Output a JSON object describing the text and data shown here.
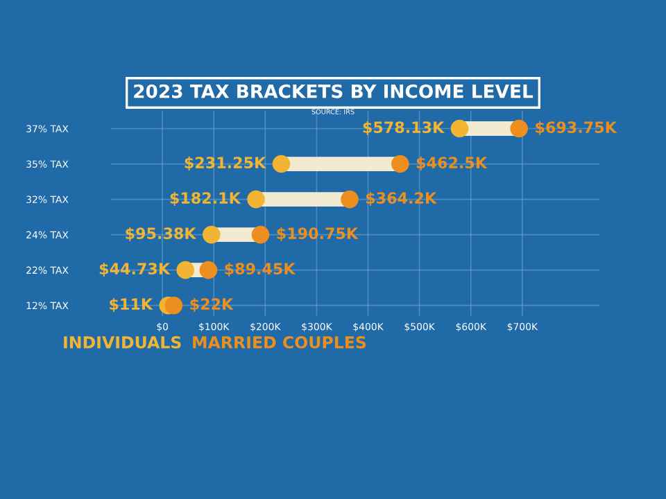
{
  "chart_data": {
    "type": "scatter",
    "orientation": "horizontal",
    "title": "2023 TAX BRACKETS BY INCOME LEVEL",
    "annotations": [
      "SOURCE: IRS"
    ],
    "categories": [
      "37% TAX",
      "35% TAX",
      "32% TAX",
      "24% TAX",
      "22% TAX",
      "12% TAX"
    ],
    "series": [
      {
        "name": "INDIVIDUALS",
        "color": "#f2b533",
        "values": [
          578.13,
          231.25,
          182.1,
          95.38,
          44.73,
          11
        ],
        "value_labels": [
          "$578.13K",
          "$231.25K",
          "$182.1K",
          "$95.38K",
          "$44.73K",
          "$11K"
        ]
      },
      {
        "name": "MARRIED COUPLES",
        "color": "#ec8f1e",
        "values": [
          693.75,
          462.5,
          364.2,
          190.75,
          89.45,
          22
        ],
        "value_labels": [
          "$693.75K",
          "$462.5K",
          "$364.2K",
          "$190.75K",
          "$89.45K",
          "$22K"
        ]
      }
    ],
    "xlim": [
      -100,
      850
    ],
    "xticks": [
      {
        "value": 0,
        "label": "$0"
      },
      {
        "value": 100,
        "label": "$100K"
      },
      {
        "value": 200,
        "label": "$200K"
      },
      {
        "value": 300,
        "label": "$300K"
      },
      {
        "value": 400,
        "label": "$400K"
      },
      {
        "value": 500,
        "label": "$500K"
      },
      {
        "value": 600,
        "label": "$600K"
      },
      {
        "value": 700,
        "label": "$700K"
      }
    ],
    "grid": true,
    "legend": "bottom left",
    "marker": "circle"
  }
}
